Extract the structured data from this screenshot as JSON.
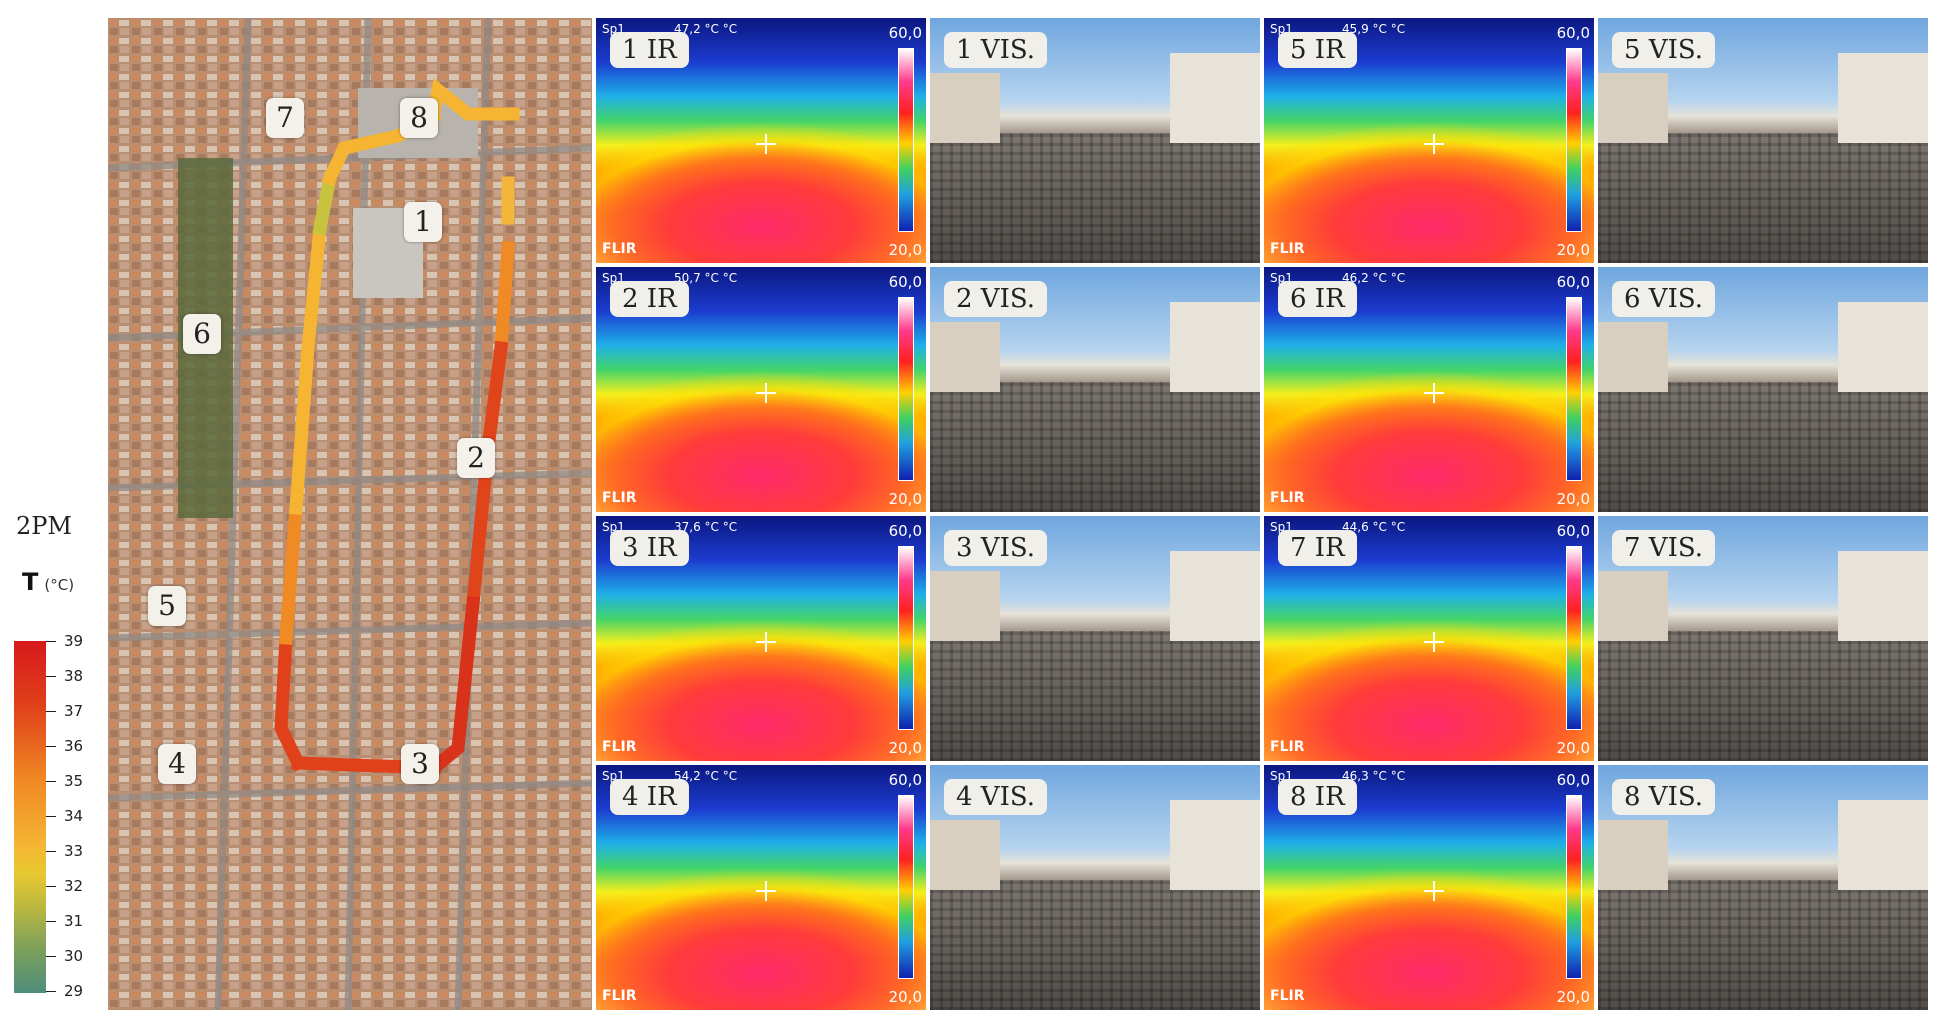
{
  "legend": {
    "time": "2PM",
    "title": "T",
    "unit": "(°C)",
    "ticks": [
      "39",
      "38",
      "37",
      "36",
      "35",
      "34",
      "33",
      "32",
      "31",
      "30",
      "29"
    ]
  },
  "map": {
    "points": [
      "1",
      "2",
      "3",
      "4",
      "5",
      "6",
      "7",
      "8"
    ]
  },
  "tiles": [
    {
      "label": "1 IR",
      "type": "ir",
      "sp": "Sp1",
      "reading": "47,2 °C  °C",
      "max": "60,0",
      "min": "20,0",
      "brand": "FLIR"
    },
    {
      "label": "1 VIS.",
      "type": "vis"
    },
    {
      "label": "5 IR",
      "type": "ir",
      "sp": "Sp1",
      "reading": "45,9 °C  °C",
      "max": "60,0",
      "min": "20,0",
      "brand": "FLIR"
    },
    {
      "label": "5 VIS.",
      "type": "vis"
    },
    {
      "label": "2 IR",
      "type": "ir",
      "sp": "Sp1",
      "reading": "50,7 °C  °C",
      "max": "60,0",
      "min": "20,0",
      "brand": "FLIR"
    },
    {
      "label": "2 VIS.",
      "type": "vis"
    },
    {
      "label": "6 IR",
      "type": "ir",
      "sp": "Sp1",
      "reading": "46,2 °C  °C",
      "max": "60,0",
      "min": "20,0",
      "brand": "FLIR"
    },
    {
      "label": "6 VIS.",
      "type": "vis"
    },
    {
      "label": "3 IR",
      "type": "ir",
      "sp": "Sp1",
      "reading": "37,6 °C  °C",
      "max": "60,0",
      "min": "20,0",
      "brand": "FLIR"
    },
    {
      "label": "3 VIS.",
      "type": "vis"
    },
    {
      "label": "7 IR",
      "type": "ir",
      "sp": "Sp1",
      "reading": "44,6 °C  °C",
      "max": "60,0",
      "min": "20,0",
      "brand": "FLIR"
    },
    {
      "label": "7 VIS.",
      "type": "vis"
    },
    {
      "label": "4 IR",
      "type": "ir",
      "sp": "Sp1",
      "reading": "54,2 °C  °C",
      "max": "60,0",
      "min": "20,0",
      "brand": "FLIR"
    },
    {
      "label": "4 VIS.",
      "type": "vis"
    },
    {
      "label": "8 IR",
      "type": "ir",
      "sp": "Sp1",
      "reading": "46,3 °C  °C",
      "max": "60,0",
      "min": "20,0",
      "brand": "FLIR"
    },
    {
      "label": "8 VIS.",
      "type": "vis"
    }
  ]
}
